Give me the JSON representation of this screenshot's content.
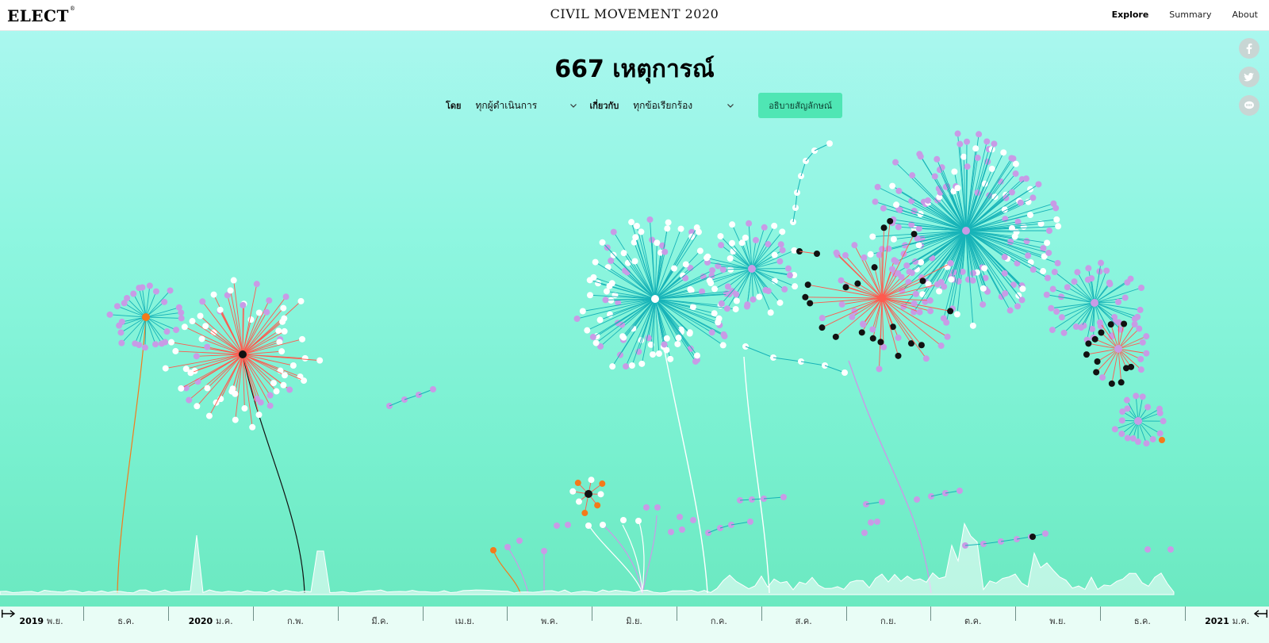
{
  "header": {
    "logo": "ELECT",
    "logo_mark": "®",
    "title": "CIVIL MOVEMENT 2020",
    "nav": [
      {
        "label": "Explore",
        "active": true
      },
      {
        "label": "Summary",
        "active": false
      },
      {
        "label": "About",
        "active": false
      }
    ]
  },
  "social": [
    "facebook-icon",
    "twitter-icon",
    "line-icon"
  ],
  "main": {
    "event_count": "667 เหตุการณ์",
    "filters": {
      "actor_label": "โดย",
      "actor_value": "ทุกผู้ดำเนินการ",
      "about_label": "เกี่ยวกับ",
      "about_value": "ทุกข้อเรียกร้อง",
      "explain_button": "อธิบายสัญลักษณ์"
    }
  },
  "colors": {
    "teal": "#17b3b8",
    "red": "#ff5a4e",
    "purple": "#c89be6",
    "white": "#ffffff",
    "black": "#111111",
    "orange": "#f47a1a",
    "button": "#4fe6b4"
  },
  "timeline": {
    "start": "2019 พ.ย.",
    "months": [
      {
        "year": "2019",
        "label": "พ.ย."
      },
      {
        "year": "",
        "label": "ธ.ค."
      },
      {
        "year": "2020",
        "label": "ม.ค."
      },
      {
        "year": "",
        "label": "ก.พ."
      },
      {
        "year": "",
        "label": "มี.ค."
      },
      {
        "year": "",
        "label": "เม.ย."
      },
      {
        "year": "",
        "label": "พ.ค."
      },
      {
        "year": "",
        "label": "มิ.ย."
      },
      {
        "year": "",
        "label": "ก.ค."
      },
      {
        "year": "",
        "label": "ส.ค."
      },
      {
        "year": "",
        "label": "ก.ย."
      },
      {
        "year": "",
        "label": "ต.ค."
      },
      {
        "year": "",
        "label": "พ.ย."
      },
      {
        "year": "",
        "label": "ธ.ค."
      },
      {
        "year": "2021",
        "label": "ม.ค."
      }
    ]
  }
}
